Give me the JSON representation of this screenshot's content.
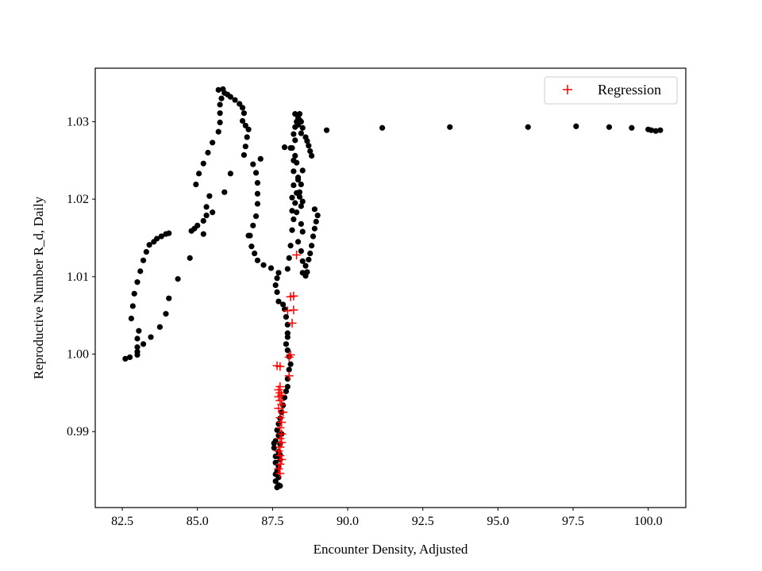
{
  "chart_data": {
    "type": "scatter",
    "title": "",
    "xlabel": "Encounter Density, Adjusted",
    "ylabel": "Reproductive Number R_d, Daily",
    "xlim": [
      81.6,
      101.25
    ],
    "ylim": [
      0.9802,
      1.0369
    ],
    "xticks": [
      82.5,
      85.0,
      87.5,
      90.0,
      92.5,
      95.0,
      97.5,
      100.0
    ],
    "xtick_labels": [
      "82.5",
      "85.0",
      "87.5",
      "90.0",
      "92.5",
      "95.0",
      "97.5",
      "100.0"
    ],
    "yticks": [
      0.99,
      1.0,
      1.01,
      1.02,
      1.03
    ],
    "ytick_labels": [
      "0.99",
      "1.00",
      "1.01",
      "1.02",
      "1.03"
    ],
    "legend": {
      "position": "top-right",
      "entries": [
        "Regression"
      ]
    },
    "colors": {
      "data": "#000000",
      "regression": "#ff0000"
    },
    "series": [
      {
        "name": "data",
        "marker": "dot",
        "points": [
          [
            82.6,
            0.9994
          ],
          [
            82.75,
            0.9996
          ],
          [
            82.8,
            1.0046
          ],
          [
            82.85,
            1.0062
          ],
          [
            82.9,
            1.0078
          ],
          [
            83.0,
            1.0093
          ],
          [
            83.1,
            1.0107
          ],
          [
            83.2,
            1.0121
          ],
          [
            83.3,
            1.0132
          ],
          [
            83.4,
            1.0141
          ],
          [
            83.55,
            1.0145
          ],
          [
            83.65,
            1.0149
          ],
          [
            83.8,
            1.0152
          ],
          [
            83.95,
            1.0155
          ],
          [
            84.05,
            1.0156
          ],
          [
            83.0,
            0.9999
          ],
          [
            83.0,
            1.0003
          ],
          [
            83.0,
            1.0009
          ],
          [
            83.0,
            1.002
          ],
          [
            83.05,
            1.003
          ],
          [
            83.2,
            1.0013
          ],
          [
            83.45,
            1.0022
          ],
          [
            83.75,
            1.0035
          ],
          [
            83.95,
            1.0052
          ],
          [
            84.05,
            1.0072
          ],
          [
            84.35,
            1.0097
          ],
          [
            84.75,
            1.0124
          ],
          [
            84.8,
            1.0159
          ],
          [
            84.9,
            1.0162
          ],
          [
            85.0,
            1.0166
          ],
          [
            85.2,
            1.0172
          ],
          [
            85.3,
            1.0179
          ],
          [
            85.3,
            1.019
          ],
          [
            85.5,
            1.0183
          ],
          [
            85.2,
            1.0155
          ],
          [
            84.95,
            1.0219
          ],
          [
            85.05,
            1.0233
          ],
          [
            85.2,
            1.0246
          ],
          [
            85.35,
            1.026
          ],
          [
            85.5,
            1.0273
          ],
          [
            85.4,
            1.0204
          ],
          [
            85.7,
            1.0287
          ],
          [
            85.75,
            1.0299
          ],
          [
            85.75,
            1.0311
          ],
          [
            85.75,
            1.0322
          ],
          [
            85.8,
            1.033
          ],
          [
            85.7,
            1.0341
          ],
          [
            85.85,
            1.0342
          ],
          [
            85.9,
            1.0337
          ],
          [
            86.0,
            1.0335
          ],
          [
            86.1,
            1.0332
          ],
          [
            86.25,
            1.0328
          ],
          [
            85.9,
            1.0209
          ],
          [
            86.1,
            1.0233
          ],
          [
            86.4,
            1.0323
          ],
          [
            86.5,
            1.0318
          ],
          [
            86.55,
            1.0311
          ],
          [
            86.5,
            1.0301
          ],
          [
            86.6,
            1.0295
          ],
          [
            86.7,
            1.029
          ],
          [
            86.65,
            1.028
          ],
          [
            86.6,
            1.0268
          ],
          [
            86.55,
            1.0257
          ],
          [
            86.85,
            1.0245
          ],
          [
            86.95,
            1.0234
          ],
          [
            87.0,
            1.0221
          ],
          [
            87.0,
            1.0207
          ],
          [
            87.0,
            1.0194
          ],
          [
            86.95,
            1.0178
          ],
          [
            86.85,
            1.0166
          ],
          [
            86.75,
            1.0153
          ],
          [
            86.8,
            1.0139
          ],
          [
            86.9,
            1.013
          ],
          [
            87.0,
            1.0121
          ],
          [
            87.2,
            1.0115
          ],
          [
            87.45,
            1.0111
          ],
          [
            87.1,
            1.0252
          ],
          [
            86.7,
            1.0153
          ],
          [
            87.7,
            1.0105
          ],
          [
            87.65,
            1.0098
          ],
          [
            87.6,
            1.0089
          ],
          [
            87.65,
            1.008
          ],
          [
            87.7,
            1.0068
          ],
          [
            87.85,
            1.0064
          ],
          [
            87.9,
            1.0058
          ],
          [
            87.95,
            1.0048
          ],
          [
            88.0,
            1.0038
          ],
          [
            88.0,
            1.0027
          ],
          [
            88.0,
            1.0022
          ],
          [
            87.95,
            1.0013
          ],
          [
            88.0,
            1.0005
          ],
          [
            88.05,
            0.9997
          ],
          [
            88.1,
            0.9987
          ],
          [
            88.05,
            0.998
          ],
          [
            88.0,
            0.9968
          ],
          [
            88.0,
            0.9958
          ],
          [
            87.95,
            0.9952
          ],
          [
            87.9,
            0.9944
          ],
          [
            87.85,
            0.9934
          ],
          [
            87.8,
            0.9925
          ],
          [
            87.75,
            0.9917
          ],
          [
            87.7,
            0.991
          ],
          [
            87.65,
            0.9902
          ],
          [
            87.7,
            0.9895
          ],
          [
            87.6,
            0.9888
          ],
          [
            87.75,
            0.9884
          ],
          [
            87.55,
            0.9879
          ],
          [
            87.7,
            0.9874
          ],
          [
            87.6,
            0.9868
          ],
          [
            87.75,
            0.9864
          ],
          [
            87.6,
            0.986
          ],
          [
            87.7,
            0.9855
          ],
          [
            87.65,
            0.9849
          ],
          [
            87.6,
            0.9845
          ],
          [
            87.7,
            0.9841
          ],
          [
            87.6,
            0.9836
          ],
          [
            87.7,
            0.9831
          ],
          [
            87.65,
            0.9828
          ],
          [
            87.75,
            0.983
          ],
          [
            87.55,
            0.9885
          ],
          [
            87.75,
            0.987
          ],
          [
            87.8,
            0.9897
          ],
          [
            88.0,
            1.011
          ],
          [
            88.05,
            1.0124
          ],
          [
            88.1,
            1.014
          ],
          [
            88.15,
            1.016
          ],
          [
            88.2,
            1.0174
          ],
          [
            88.15,
            1.0185
          ],
          [
            88.25,
            1.0195
          ],
          [
            88.15,
            1.0202
          ],
          [
            88.3,
            1.0208
          ],
          [
            88.2,
            1.0218
          ],
          [
            88.35,
            1.0228
          ],
          [
            88.2,
            1.0236
          ],
          [
            88.3,
            1.0247
          ],
          [
            88.25,
            1.0256
          ],
          [
            88.15,
            1.0266
          ],
          [
            88.25,
            1.0276
          ],
          [
            88.2,
            1.0284
          ],
          [
            88.25,
            1.0293
          ],
          [
            88.3,
            1.03
          ],
          [
            88.35,
            1.0305
          ],
          [
            88.4,
            1.031
          ],
          [
            87.9,
            1.0267
          ],
          [
            88.1,
            1.0266
          ],
          [
            88.2,
            1.025
          ],
          [
            88.5,
            1.0237
          ],
          [
            88.35,
            1.0225
          ],
          [
            88.45,
            1.0219
          ],
          [
            88.4,
            1.0209
          ],
          [
            88.4,
            1.0203
          ],
          [
            88.5,
            1.0197
          ],
          [
            88.45,
            1.0191
          ],
          [
            88.3,
            1.0183
          ],
          [
            88.45,
            1.0168
          ],
          [
            88.5,
            1.0158
          ],
          [
            88.35,
            1.0145
          ],
          [
            88.45,
            1.0133
          ],
          [
            88.5,
            1.012
          ],
          [
            88.6,
            1.0114
          ],
          [
            88.5,
            1.0105
          ],
          [
            88.6,
            1.0101
          ],
          [
            88.65,
            1.0106
          ],
          [
            88.7,
            1.0122
          ],
          [
            88.75,
            1.013
          ],
          [
            88.8,
            1.014
          ],
          [
            88.85,
            1.0152
          ],
          [
            88.9,
            1.0162
          ],
          [
            88.95,
            1.0171
          ],
          [
            89.0,
            1.0179
          ],
          [
            88.9,
            1.0187
          ],
          [
            88.4,
            1.0302
          ],
          [
            88.35,
            1.0296
          ],
          [
            88.5,
            1.0292
          ],
          [
            88.45,
            1.0285
          ],
          [
            88.6,
            1.028
          ],
          [
            88.65,
            1.0275
          ],
          [
            88.7,
            1.0269
          ],
          [
            88.75,
            1.0262
          ],
          [
            88.8,
            1.0256
          ],
          [
            88.45,
            1.03
          ],
          [
            88.25,
            1.031
          ],
          [
            89.3,
            1.0289
          ],
          [
            91.15,
            1.0292
          ],
          [
            93.4,
            1.0293
          ],
          [
            96.0,
            1.0293
          ],
          [
            97.6,
            1.0294
          ],
          [
            98.7,
            1.0293
          ],
          [
            99.45,
            1.0292
          ],
          [
            100.0,
            1.029
          ],
          [
            100.1,
            1.0289
          ],
          [
            100.25,
            1.0288
          ],
          [
            100.4,
            1.0289
          ]
        ]
      },
      {
        "name": "Regression",
        "marker": "plus",
        "points": [
          [
            88.3,
            1.0128
          ],
          [
            88.2,
            1.0075
          ],
          [
            88.1,
            1.0074
          ],
          [
            88.2,
            1.0057
          ],
          [
            88.0,
            1.0056
          ],
          [
            88.15,
            1.004
          ],
          [
            88.1,
            0.9999
          ],
          [
            88.05,
            0.9996
          ],
          [
            88.05,
            0.9972
          ],
          [
            87.65,
            0.9985
          ],
          [
            87.75,
            0.9984
          ],
          [
            87.75,
            0.9958
          ],
          [
            87.7,
            0.9954
          ],
          [
            87.75,
            0.995
          ],
          [
            87.8,
            0.9947
          ],
          [
            87.7,
            0.9945
          ],
          [
            87.75,
            0.994
          ],
          [
            87.8,
            0.9935
          ],
          [
            87.7,
            0.993
          ],
          [
            87.85,
            0.9925
          ],
          [
            87.75,
            0.9918
          ],
          [
            87.8,
            0.9912
          ],
          [
            87.75,
            0.9905
          ],
          [
            87.8,
            0.9897
          ],
          [
            87.75,
            0.9891
          ],
          [
            87.8,
            0.9886
          ],
          [
            87.75,
            0.988
          ],
          [
            87.7,
            0.9875
          ],
          [
            87.75,
            0.9869
          ],
          [
            87.8,
            0.9864
          ],
          [
            87.75,
            0.9858
          ],
          [
            87.7,
            0.9852
          ],
          [
            87.75,
            0.9846
          ]
        ]
      }
    ]
  }
}
